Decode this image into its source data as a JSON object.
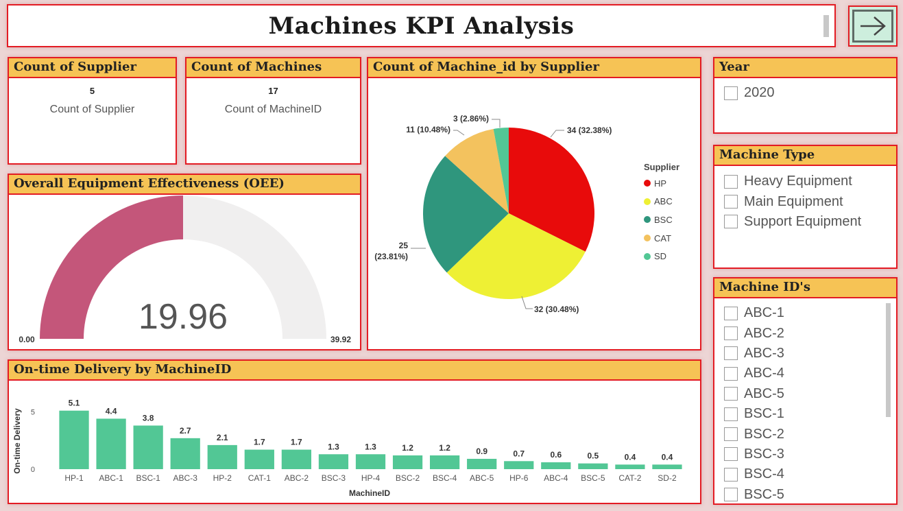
{
  "header": {
    "title": "Machines KPI Analysis"
  },
  "cards": {
    "supplier": {
      "heading": "Count of Supplier",
      "value": "5",
      "label": "Count of Supplier"
    },
    "machines": {
      "heading": "Count of Machines",
      "value": "17",
      "label": "Count of MachineID"
    }
  },
  "oee": {
    "heading": "Overall Equipment Effectiveness (OEE)",
    "value": 19.96,
    "value_label": "19.96",
    "min_label": "0.00",
    "max_label": "39.92",
    "min": 0,
    "max": 39.92,
    "fill_color": "#c4567a",
    "track_color": "#f0efef"
  },
  "pie": {
    "heading": "Count of Machine_id by Supplier",
    "legend_title": "Supplier",
    "slices": [
      {
        "name": "HP",
        "value": 34,
        "label": "34 (32.38%)",
        "color": "#e80b0b"
      },
      {
        "name": "ABC",
        "value": 32,
        "label": "32 (30.48%)",
        "color": "#eef034"
      },
      {
        "name": "BSC",
        "value": 25,
        "label_line1": "25",
        "label_line2": "(23.81%)",
        "color": "#2f967d"
      },
      {
        "name": "CAT",
        "value": 11,
        "label": "11 (10.48%)",
        "color": "#f3c25e"
      },
      {
        "name": "SD",
        "value": 3,
        "label": "3 (2.86%)",
        "color": "#52c795"
      }
    ]
  },
  "filters": {
    "year": {
      "heading": "Year",
      "options": [
        "2020"
      ]
    },
    "machine_type": {
      "heading": "Machine Type",
      "options": [
        "Heavy Equipment",
        "Main Equipment",
        "Support Equipment"
      ]
    },
    "machine_ids": {
      "heading": "Machine ID's",
      "options": [
        "ABC-1",
        "ABC-2",
        "ABC-3",
        "ABC-4",
        "ABC-5",
        "BSC-1",
        "BSC-2",
        "BSC-3",
        "BSC-4",
        "BSC-5"
      ]
    }
  },
  "chart_data": {
    "type": "bar",
    "title": "On-time Delivery by MachineID",
    "xlabel": "MachineID",
    "ylabel": "On-time Delivery",
    "categories": [
      "HP-1",
      "ABC-1",
      "BSC-1",
      "ABC-3",
      "HP-2",
      "CAT-1",
      "ABC-2",
      "BSC-3",
      "HP-4",
      "BSC-2",
      "BSC-4",
      "ABC-5",
      "HP-6",
      "ABC-4",
      "BSC-5",
      "CAT-2",
      "SD-2"
    ],
    "values": [
      5.1,
      4.4,
      3.8,
      2.7,
      2.1,
      1.7,
      1.7,
      1.3,
      1.3,
      1.2,
      1.2,
      0.9,
      0.7,
      0.6,
      0.5,
      0.4,
      0.4
    ],
    "yticks": [
      0,
      5
    ],
    "ylim": [
      0,
      5.5
    ],
    "color": "#52c795",
    "grid": false
  }
}
